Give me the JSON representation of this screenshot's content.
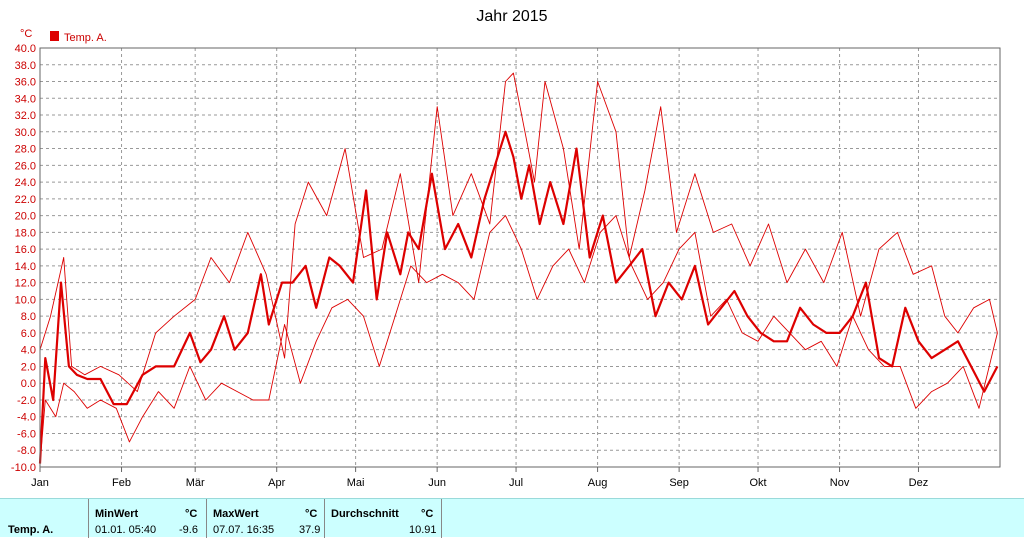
{
  "chart_data": {
    "type": "line",
    "title": "Jahr 2015",
    "unit": "°C",
    "ylim": [
      -10,
      40
    ],
    "y_ticks": [
      "-10.0",
      "-8.0",
      "-6.0",
      "-4.0",
      "-2.0",
      "0.0",
      "2.0",
      "4.0",
      "6.0",
      "8.0",
      "10.0",
      "12.0",
      "14.0",
      "16.0",
      "18.0",
      "20.0",
      "22.0",
      "24.0",
      "26.0",
      "28.0",
      "30.0",
      "32.0",
      "34.0",
      "36.0",
      "38.0",
      "40.0"
    ],
    "x_labels": [
      "Jan",
      "Feb",
      "Mär",
      "Apr",
      "Mai",
      "Jun",
      "Jul",
      "Aug",
      "Sep",
      "Okt",
      "Nov",
      "Dez"
    ],
    "grid": true,
    "legend": {
      "label": "Temp. A.",
      "placement": "top-left"
    },
    "colors": {
      "series": "#dd0000",
      "grid": "#999999",
      "frame": "#666666"
    },
    "series": [
      {
        "name": "Temp. A.",
        "role": "max",
        "x_day": [
          1,
          5,
          10,
          13,
          18,
          24,
          31,
          38,
          45,
          52,
          60,
          66,
          73,
          80,
          87,
          94,
          98,
          103,
          110,
          117,
          124,
          131,
          138,
          145,
          152,
          158,
          165,
          172,
          178,
          181,
          186,
          189,
          193,
          200,
          206,
          213,
          220,
          225,
          231,
          237,
          243,
          250,
          257,
          264,
          271,
          278,
          285,
          292,
          299,
          306,
          313,
          320,
          327,
          333,
          340,
          345,
          350,
          356,
          362,
          365
        ],
        "y": [
          4,
          8,
          15,
          2,
          1,
          2,
          1,
          -1,
          6,
          8,
          10,
          15,
          12,
          18,
          13,
          3,
          19,
          24,
          20,
          28,
          15,
          16,
          25,
          12,
          33,
          20,
          25,
          19,
          36,
          37,
          29,
          24,
          36,
          28,
          16,
          36,
          30,
          15,
          23,
          33,
          18,
          25,
          18,
          19,
          14,
          19,
          12,
          16,
          12,
          18,
          8,
          16,
          18,
          13,
          14,
          8,
          6,
          9,
          10,
          6
        ]
      },
      {
        "name": "Temp. A.",
        "role": "avg",
        "x_day": [
          1,
          3,
          6,
          9,
          12,
          15,
          19,
          24,
          29,
          34,
          40,
          45,
          52,
          58,
          62,
          66,
          71,
          75,
          80,
          85,
          88,
          93,
          97,
          102,
          106,
          111,
          115,
          120,
          125,
          129,
          133,
          138,
          141,
          145,
          150,
          155,
          160,
          165,
          170,
          174,
          178,
          181,
          184,
          187,
          191,
          195,
          200,
          205,
          210,
          215,
          220,
          225,
          230,
          235,
          240,
          245,
          250,
          255,
          260,
          265,
          270,
          275,
          280,
          285,
          290,
          295,
          300,
          305,
          310,
          315,
          320,
          325,
          330,
          335,
          340,
          345,
          350,
          355,
          360,
          365
        ],
        "y": [
          -9.6,
          3,
          -2,
          12,
          2,
          1,
          0.5,
          0.5,
          -2.5,
          -2.5,
          1,
          2,
          2,
          6,
          2.5,
          4,
          8,
          4,
          6,
          13,
          7,
          12,
          12,
          14,
          9,
          15,
          14,
          12,
          23,
          10,
          18,
          13,
          18,
          16,
          25,
          16,
          19,
          15,
          22,
          26,
          30,
          27,
          22,
          26,
          19,
          24,
          19,
          28,
          15,
          20,
          12,
          14,
          16,
          8,
          12,
          10,
          14,
          7,
          9,
          11,
          8,
          6,
          5,
          5,
          9,
          7,
          6,
          6,
          8,
          12,
          3,
          2,
          9,
          5,
          3,
          4,
          5,
          2,
          -1,
          2
        ]
      },
      {
        "name": "Temp. A.",
        "role": "min",
        "x_day": [
          1,
          3,
          7,
          10,
          14,
          19,
          24,
          30,
          35,
          40,
          46,
          52,
          58,
          64,
          70,
          76,
          82,
          88,
          94,
          100,
          106,
          112,
          118,
          124,
          130,
          136,
          142,
          148,
          154,
          160,
          166,
          172,
          178,
          184,
          190,
          196,
          202,
          208,
          214,
          220,
          226,
          232,
          238,
          244,
          250,
          256,
          262,
          268,
          274,
          280,
          286,
          292,
          298,
          304,
          310,
          316,
          322,
          328,
          334,
          340,
          346,
          352,
          358,
          365
        ],
        "y": [
          -9.6,
          -2,
          -4,
          0,
          -1,
          -3,
          -2,
          -3,
          -7,
          -4,
          -1,
          -3,
          2,
          -2,
          0,
          -1,
          -2,
          -2,
          7,
          0,
          5,
          9,
          10,
          8,
          2,
          8,
          14,
          12,
          13,
          12,
          10,
          18,
          20,
          16,
          10,
          14,
          16,
          12,
          18,
          20,
          14,
          10,
          12,
          16,
          18,
          8,
          10,
          6,
          5,
          8,
          6,
          4,
          5,
          2,
          8,
          4,
          2,
          2,
          -3,
          -1,
          0,
          2,
          -3,
          6
        ]
      }
    ]
  },
  "stats": {
    "row_label": "Temp. A.",
    "min": {
      "header": "MinWert",
      "unit": "°C",
      "time": "01.01.  05:40",
      "value": "-9.6"
    },
    "max": {
      "header": "MaxWert",
      "unit": "°C",
      "time": "07.07.  16:35",
      "value": "37.9"
    },
    "avg": {
      "header": "Durchschnitt",
      "unit": "°C",
      "value": "10.91"
    }
  }
}
